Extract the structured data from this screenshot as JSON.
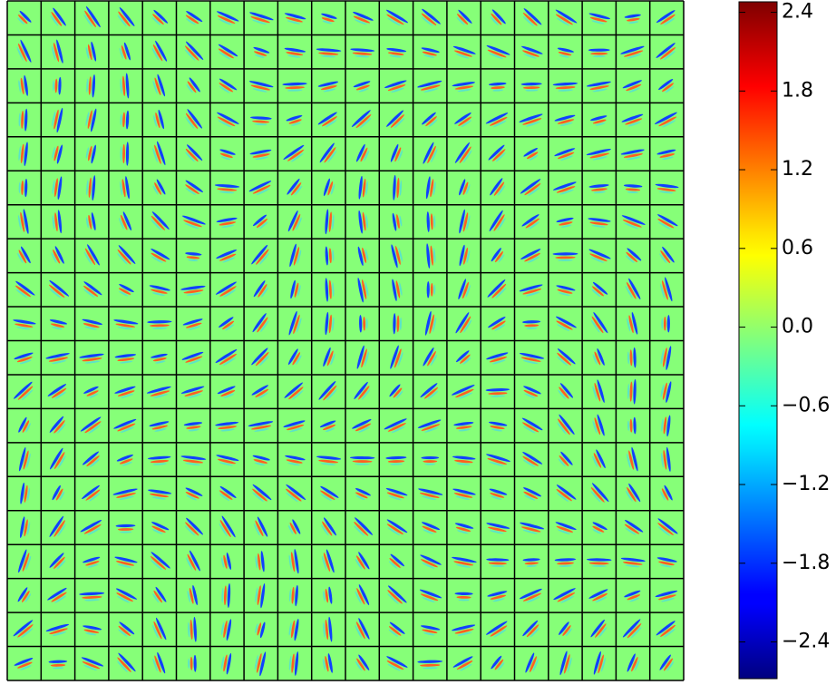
{
  "chart_data": {
    "type": "filter-grid",
    "rows": 20,
    "cols": 20,
    "colormap": "jet",
    "clim": [
      -2.68,
      2.48
    ],
    "cticks": [
      2.4,
      1.8,
      1.2,
      0.6,
      {
        "value": 0,
        "label": "0.0"
      },
      {
        "value": -0.6,
        "label": "−0.6"
      },
      {
        "value": -1.2,
        "label": "−1.2"
      },
      {
        "value": -1.8,
        "label": "−1.8"
      },
      {
        "value": -2.4,
        "label": "−2.4"
      }
    ]
  }
}
